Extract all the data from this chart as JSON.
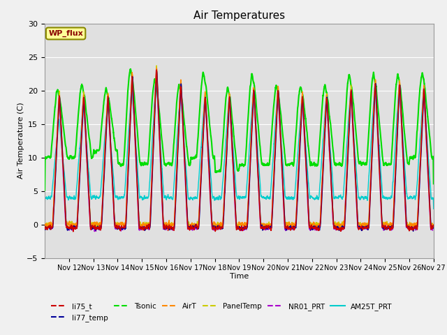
{
  "title": "Air Temperatures",
  "xlabel": "Time",
  "ylabel": "Air Temperature (C)",
  "ylim": [
    -5,
    30
  ],
  "xlim_days": [
    11,
    27
  ],
  "yticks": [
    -5,
    0,
    5,
    10,
    15,
    20,
    25,
    30
  ],
  "xtick_labels": [
    "Nov 12",
    "Nov 13",
    "Nov 14",
    "Nov 15",
    "Nov 16",
    "Nov 17",
    "Nov 18",
    "Nov 19",
    "Nov 20",
    "Nov 21",
    "Nov 22",
    "Nov 23",
    "Nov 24",
    "Nov 25",
    "Nov 26",
    "Nov 27"
  ],
  "series_colors": {
    "li75_t": "#cc0000",
    "li77_temp": "#000099",
    "Tsonic": "#00dd00",
    "AirT": "#ff8800",
    "PanelTemp": "#cccc00",
    "NR01_PRT": "#aa00cc",
    "AM25T_PRT": "#00cccc"
  },
  "series_lw": {
    "li75_t": 1.0,
    "li77_temp": 1.0,
    "Tsonic": 1.5,
    "AirT": 1.0,
    "PanelTemp": 1.0,
    "NR01_PRT": 1.0,
    "AM25T_PRT": 1.0
  },
  "fig_bg_color": "#f0f0f0",
  "plot_bg_color": "#e0e0e0",
  "grid_color": "#ffffff",
  "wp_flux_box_color": "#ffff99",
  "wp_flux_text_color": "#880000",
  "wp_flux_border_color": "#888800",
  "n_days": 16,
  "pts_per_day": 288
}
